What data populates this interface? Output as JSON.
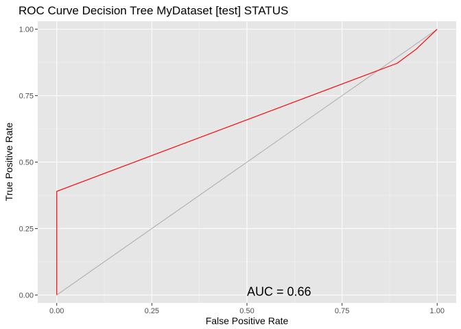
{
  "chart_data": {
    "type": "line",
    "title": "ROC Curve Decision Tree MyDataset [test] STATUS",
    "xlabel": "False Positive Rate",
    "ylabel": "True Positive Rate",
    "xlim": [
      -0.05,
      1.05
    ],
    "ylim": [
      -0.03,
      1.03
    ],
    "x_ticks": [
      "0.00",
      "0.25",
      "0.50",
      "0.75",
      "1.00"
    ],
    "y_ticks": [
      "0.00",
      "0.25",
      "0.50",
      "0.75",
      "1.00"
    ],
    "grid": true,
    "legend": "none",
    "series": [
      {
        "color": "#ff0000",
        "x": [
          0,
          0,
          0.895,
          0.945,
          1.0
        ],
        "y": [
          0,
          0.39,
          0.872,
          0.925,
          1.0
        ]
      },
      {
        "color": "#b3b3b3",
        "x": [
          0,
          1
        ],
        "y": [
          0,
          1
        ]
      }
    ],
    "annotation": {
      "text": "AUC = 0.66",
      "x": 0.5,
      "y": 0.0
    }
  }
}
